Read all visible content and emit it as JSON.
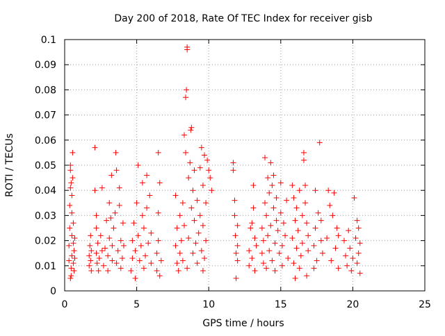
{
  "chart_data": {
    "type": "scatter",
    "title": "Day 200 of 2018, Rate Of TEC Index for receiver gisb",
    "xlabel": "GPS time / hours",
    "ylabel": "ROTI / TECUs",
    "xlim": [
      0,
      25
    ],
    "ylim": [
      0,
      0.1
    ],
    "xticks": [
      0,
      5,
      10,
      15,
      20,
      25
    ],
    "xtick_labels": [
      "0",
      "5",
      "10",
      "15",
      "20",
      "25"
    ],
    "yticks": [
      0,
      0.01,
      0.02,
      0.03,
      0.04,
      0.05,
      0.06,
      0.07,
      0.08,
      0.09,
      0.1
    ],
    "ytick_labels": [
      "0",
      "0.01",
      "0.02",
      "0.03",
      "0.04",
      "0.05",
      "0.06",
      "0.07",
      "0.08",
      "0.09",
      "0.1"
    ],
    "grid": true,
    "legend": "none",
    "marker": "plus",
    "color": "#ff0000",
    "series": [
      {
        "points": [
          [
            0.3,
            0.012
          ],
          [
            0.3,
            0.018
          ],
          [
            0.35,
            0.025
          ],
          [
            0.35,
            0.034
          ],
          [
            0.4,
            0.041
          ],
          [
            0.4,
            0.048
          ],
          [
            0.4,
            0.05
          ],
          [
            0.45,
            0.006
          ],
          [
            0.45,
            0.009
          ],
          [
            0.5,
            0.014
          ],
          [
            0.5,
            0.022
          ],
          [
            0.5,
            0.031
          ],
          [
            0.55,
            0.045
          ],
          [
            0.55,
            0.055
          ],
          [
            0.6,
            0.011
          ],
          [
            0.6,
            0.019
          ],
          [
            0.6,
            0.027
          ],
          [
            0.65,
            0.008
          ],
          [
            0.65,
            0.016
          ],
          [
            0.7,
            0.021
          ],
          [
            0.7,
            0.013
          ],
          [
            0.4,
            0.005
          ],
          [
            0.5,
            0.038
          ],
          [
            0.45,
            0.043
          ],
          [
            1.7,
            0.01
          ],
          [
            1.7,
            0.014
          ],
          [
            1.75,
            0.018
          ],
          [
            1.8,
            0.012
          ],
          [
            1.8,
            0.022
          ],
          [
            1.85,
            0.008
          ],
          [
            1.85,
            0.016
          ],
          [
            2.1,
            0.057
          ],
          [
            2.1,
            0.04
          ],
          [
            2.2,
            0.03
          ],
          [
            2.2,
            0.025
          ],
          [
            2.2,
            0.015
          ],
          [
            2.25,
            0.011
          ],
          [
            2.3,
            0.019
          ],
          [
            2.35,
            0.008
          ],
          [
            2.4,
            0.013
          ],
          [
            2.5,
            0.022
          ],
          [
            2.6,
            0.016
          ],
          [
            2.6,
            0.041
          ],
          [
            2.7,
            0.01
          ],
          [
            2.8,
            0.017
          ],
          [
            2.9,
            0.028
          ],
          [
            3.0,
            0.014
          ],
          [
            3.0,
            0.008
          ],
          [
            3.1,
            0.021
          ],
          [
            3.1,
            0.035
          ],
          [
            3.2,
            0.029
          ],
          [
            3.25,
            0.046
          ],
          [
            3.3,
            0.012
          ],
          [
            3.3,
            0.018
          ],
          [
            3.4,
            0.025
          ],
          [
            3.5,
            0.031
          ],
          [
            3.55,
            0.055
          ],
          [
            3.6,
            0.048
          ],
          [
            3.6,
            0.011
          ],
          [
            3.7,
            0.016
          ],
          [
            3.8,
            0.034
          ],
          [
            3.8,
            0.041
          ],
          [
            3.9,
            0.02
          ],
          [
            3.9,
            0.009
          ],
          [
            4.0,
            0.013
          ],
          [
            4.05,
            0.027
          ],
          [
            4.1,
            0.018
          ],
          [
            4.6,
            0.008
          ],
          [
            4.7,
            0.013
          ],
          [
            4.7,
            0.02
          ],
          [
            4.8,
            0.027
          ],
          [
            4.9,
            0.016
          ],
          [
            4.9,
            0.005
          ],
          [
            5.0,
            0.035
          ],
          [
            5.1,
            0.05
          ],
          [
            5.1,
            0.022
          ],
          [
            5.2,
            0.012
          ],
          [
            5.3,
            0.018
          ],
          [
            5.4,
            0.03
          ],
          [
            5.4,
            0.043
          ],
          [
            5.5,
            0.009
          ],
          [
            5.5,
            0.025
          ],
          [
            5.6,
            0.014
          ],
          [
            5.7,
            0.033
          ],
          [
            5.7,
            0.046
          ],
          [
            5.8,
            0.019
          ],
          [
            5.9,
            0.038
          ],
          [
            6.0,
            0.011
          ],
          [
            6.0,
            0.023
          ],
          [
            6.4,
            0.008
          ],
          [
            6.4,
            0.015
          ],
          [
            6.5,
            0.02
          ],
          [
            6.5,
            0.031
          ],
          [
            6.5,
            0.055
          ],
          [
            6.6,
            0.043
          ],
          [
            6.6,
            0.006
          ],
          [
            6.7,
            0.012
          ],
          [
            7.7,
            0.018
          ],
          [
            7.7,
            0.038
          ],
          [
            7.8,
            0.011
          ],
          [
            7.8,
            0.025
          ],
          [
            7.9,
            0.008
          ],
          [
            8.0,
            0.015
          ],
          [
            8.0,
            0.03
          ],
          [
            8.1,
            0.02
          ],
          [
            8.2,
            0.012
          ],
          [
            8.2,
            0.035
          ],
          [
            8.3,
            0.062
          ],
          [
            8.3,
            0.026
          ],
          [
            8.4,
            0.055
          ],
          [
            8.4,
            0.077
          ],
          [
            8.45,
            0.08
          ],
          [
            8.5,
            0.096
          ],
          [
            8.5,
            0.097
          ],
          [
            8.5,
            0.009
          ],
          [
            8.6,
            0.021
          ],
          [
            8.6,
            0.045
          ],
          [
            8.7,
            0.051
          ],
          [
            8.75,
            0.064
          ],
          [
            8.8,
            0.065
          ],
          [
            8.8,
            0.033
          ],
          [
            8.9,
            0.015
          ],
          [
            8.9,
            0.04
          ],
          [
            9.0,
            0.028
          ],
          [
            9.0,
            0.048
          ],
          [
            9.1,
            0.019
          ],
          [
            9.2,
            0.011
          ],
          [
            9.2,
            0.036
          ],
          [
            9.3,
            0.023
          ],
          [
            9.4,
            0.03
          ],
          [
            9.4,
            0.049
          ],
          [
            9.5,
            0.057
          ],
          [
            9.5,
            0.016
          ],
          [
            9.6,
            0.042
          ],
          [
            9.6,
            0.026
          ],
          [
            9.7,
            0.054
          ],
          [
            9.7,
            0.013
          ],
          [
            9.8,
            0.02
          ],
          [
            9.8,
            0.035
          ],
          [
            9.9,
            0.052
          ],
          [
            10.0,
            0.048
          ],
          [
            10.1,
            0.045
          ],
          [
            10.2,
            0.04
          ],
          [
            9.6,
            0.008
          ],
          [
            11.7,
            0.051
          ],
          [
            11.7,
            0.048
          ],
          [
            11.8,
            0.036
          ],
          [
            11.8,
            0.03
          ],
          [
            11.85,
            0.022
          ],
          [
            11.9,
            0.015
          ],
          [
            11.9,
            0.005
          ],
          [
            12.0,
            0.012
          ],
          [
            12.0,
            0.018
          ],
          [
            12.0,
            0.026
          ],
          [
            12.8,
            0.01
          ],
          [
            12.8,
            0.016
          ],
          [
            12.9,
            0.025
          ],
          [
            13.0,
            0.027
          ],
          [
            13.0,
            0.013
          ],
          [
            13.1,
            0.033
          ],
          [
            13.1,
            0.042
          ],
          [
            13.2,
            0.021
          ],
          [
            13.2,
            0.008
          ],
          [
            13.3,
            0.018
          ],
          [
            13.7,
            0.015
          ],
          [
            13.7,
            0.025
          ],
          [
            13.8,
            0.011
          ],
          [
            13.8,
            0.02
          ],
          [
            13.9,
            0.035
          ],
          [
            13.9,
            0.053
          ],
          [
            14.0,
            0.03
          ],
          [
            14.0,
            0.009
          ],
          [
            14.1,
            0.045
          ],
          [
            14.1,
            0.022
          ],
          [
            14.2,
            0.039
          ],
          [
            14.2,
            0.016
          ],
          [
            14.3,
            0.051
          ],
          [
            14.3,
            0.026
          ],
          [
            14.4,
            0.042
          ],
          [
            14.4,
            0.012
          ],
          [
            14.5,
            0.046
          ],
          [
            14.5,
            0.033
          ],
          [
            14.6,
            0.019
          ],
          [
            14.6,
            0.008
          ],
          [
            14.7,
            0.028
          ],
          [
            14.7,
            0.037
          ],
          [
            14.8,
            0.024
          ],
          [
            14.9,
            0.015
          ],
          [
            15.0,
            0.031
          ],
          [
            15.0,
            0.043
          ],
          [
            15.1,
            0.018
          ],
          [
            15.1,
            0.01
          ],
          [
            15.2,
            0.027
          ],
          [
            15.3,
            0.022
          ],
          [
            15.4,
            0.036
          ],
          [
            15.5,
            0.013
          ],
          [
            15.8,
            0.021
          ],
          [
            15.8,
            0.042
          ],
          [
            15.9,
            0.037
          ],
          [
            15.9,
            0.011
          ],
          [
            16.0,
            0.028
          ],
          [
            16.0,
            0.005
          ],
          [
            16.1,
            0.017
          ],
          [
            16.1,
            0.033
          ],
          [
            16.2,
            0.024
          ],
          [
            16.3,
            0.009
          ],
          [
            16.3,
            0.04
          ],
          [
            16.4,
            0.014
          ],
          [
            16.5,
            0.03
          ],
          [
            16.5,
            0.019
          ],
          [
            16.6,
            0.055
          ],
          [
            16.6,
            0.052
          ],
          [
            16.7,
            0.042
          ],
          [
            16.7,
            0.035
          ],
          [
            16.8,
            0.027
          ],
          [
            16.8,
            0.006
          ],
          [
            16.9,
            0.016
          ],
          [
            16.9,
            0.022
          ],
          [
            17.3,
            0.009
          ],
          [
            17.3,
            0.018
          ],
          [
            17.4,
            0.025
          ],
          [
            17.4,
            0.04
          ],
          [
            17.5,
            0.012
          ],
          [
            17.6,
            0.031
          ],
          [
            17.7,
            0.059
          ],
          [
            17.8,
            0.02
          ],
          [
            17.8,
            0.028
          ],
          [
            17.9,
            0.015
          ],
          [
            18.2,
            0.021
          ],
          [
            18.3,
            0.04
          ],
          [
            18.4,
            0.034
          ],
          [
            18.5,
            0.012
          ],
          [
            18.6,
            0.03
          ],
          [
            18.7,
            0.039
          ],
          [
            18.8,
            0.017
          ],
          [
            18.9,
            0.025
          ],
          [
            19.0,
            0.009
          ],
          [
            19.0,
            0.022
          ],
          [
            19.4,
            0.02
          ],
          [
            19.5,
            0.014
          ],
          [
            19.6,
            0.01
          ],
          [
            19.7,
            0.024
          ],
          [
            19.8,
            0.017
          ],
          [
            19.9,
            0.008
          ],
          [
            20.0,
            0.013
          ],
          [
            20.1,
            0.037
          ],
          [
            20.2,
            0.021
          ],
          [
            20.3,
            0.011
          ],
          [
            20.3,
            0.028
          ],
          [
            20.4,
            0.015
          ],
          [
            20.4,
            0.025
          ],
          [
            20.5,
            0.007
          ],
          [
            20.5,
            0.019
          ]
        ]
      }
    ]
  }
}
